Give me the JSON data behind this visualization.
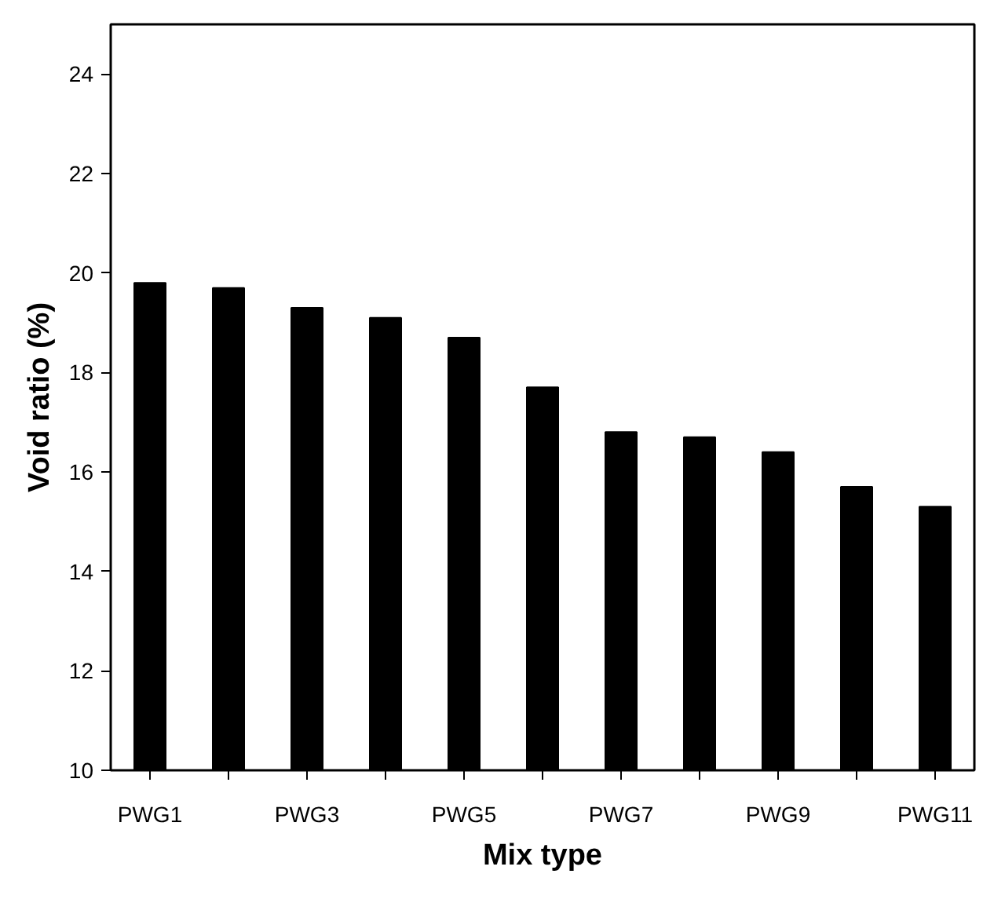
{
  "chart_data": {
    "type": "bar",
    "xlabel": "Mix type",
    "ylabel": "Void ratio (%)",
    "categories": [
      "PWG1",
      null,
      "PWG3",
      null,
      "PWG5",
      null,
      "PWG7",
      null,
      "PWG9",
      null,
      "PWG11"
    ],
    "values": [
      19.8,
      19.7,
      19.3,
      19.1,
      18.7,
      17.7,
      16.8,
      16.7,
      16.4,
      15.7,
      15.3
    ],
    "color": "#000000",
    "ylim": [
      10,
      25
    ],
    "yticks": [
      10,
      12,
      14,
      16,
      18,
      20,
      22,
      24
    ],
    "grid": false
  }
}
